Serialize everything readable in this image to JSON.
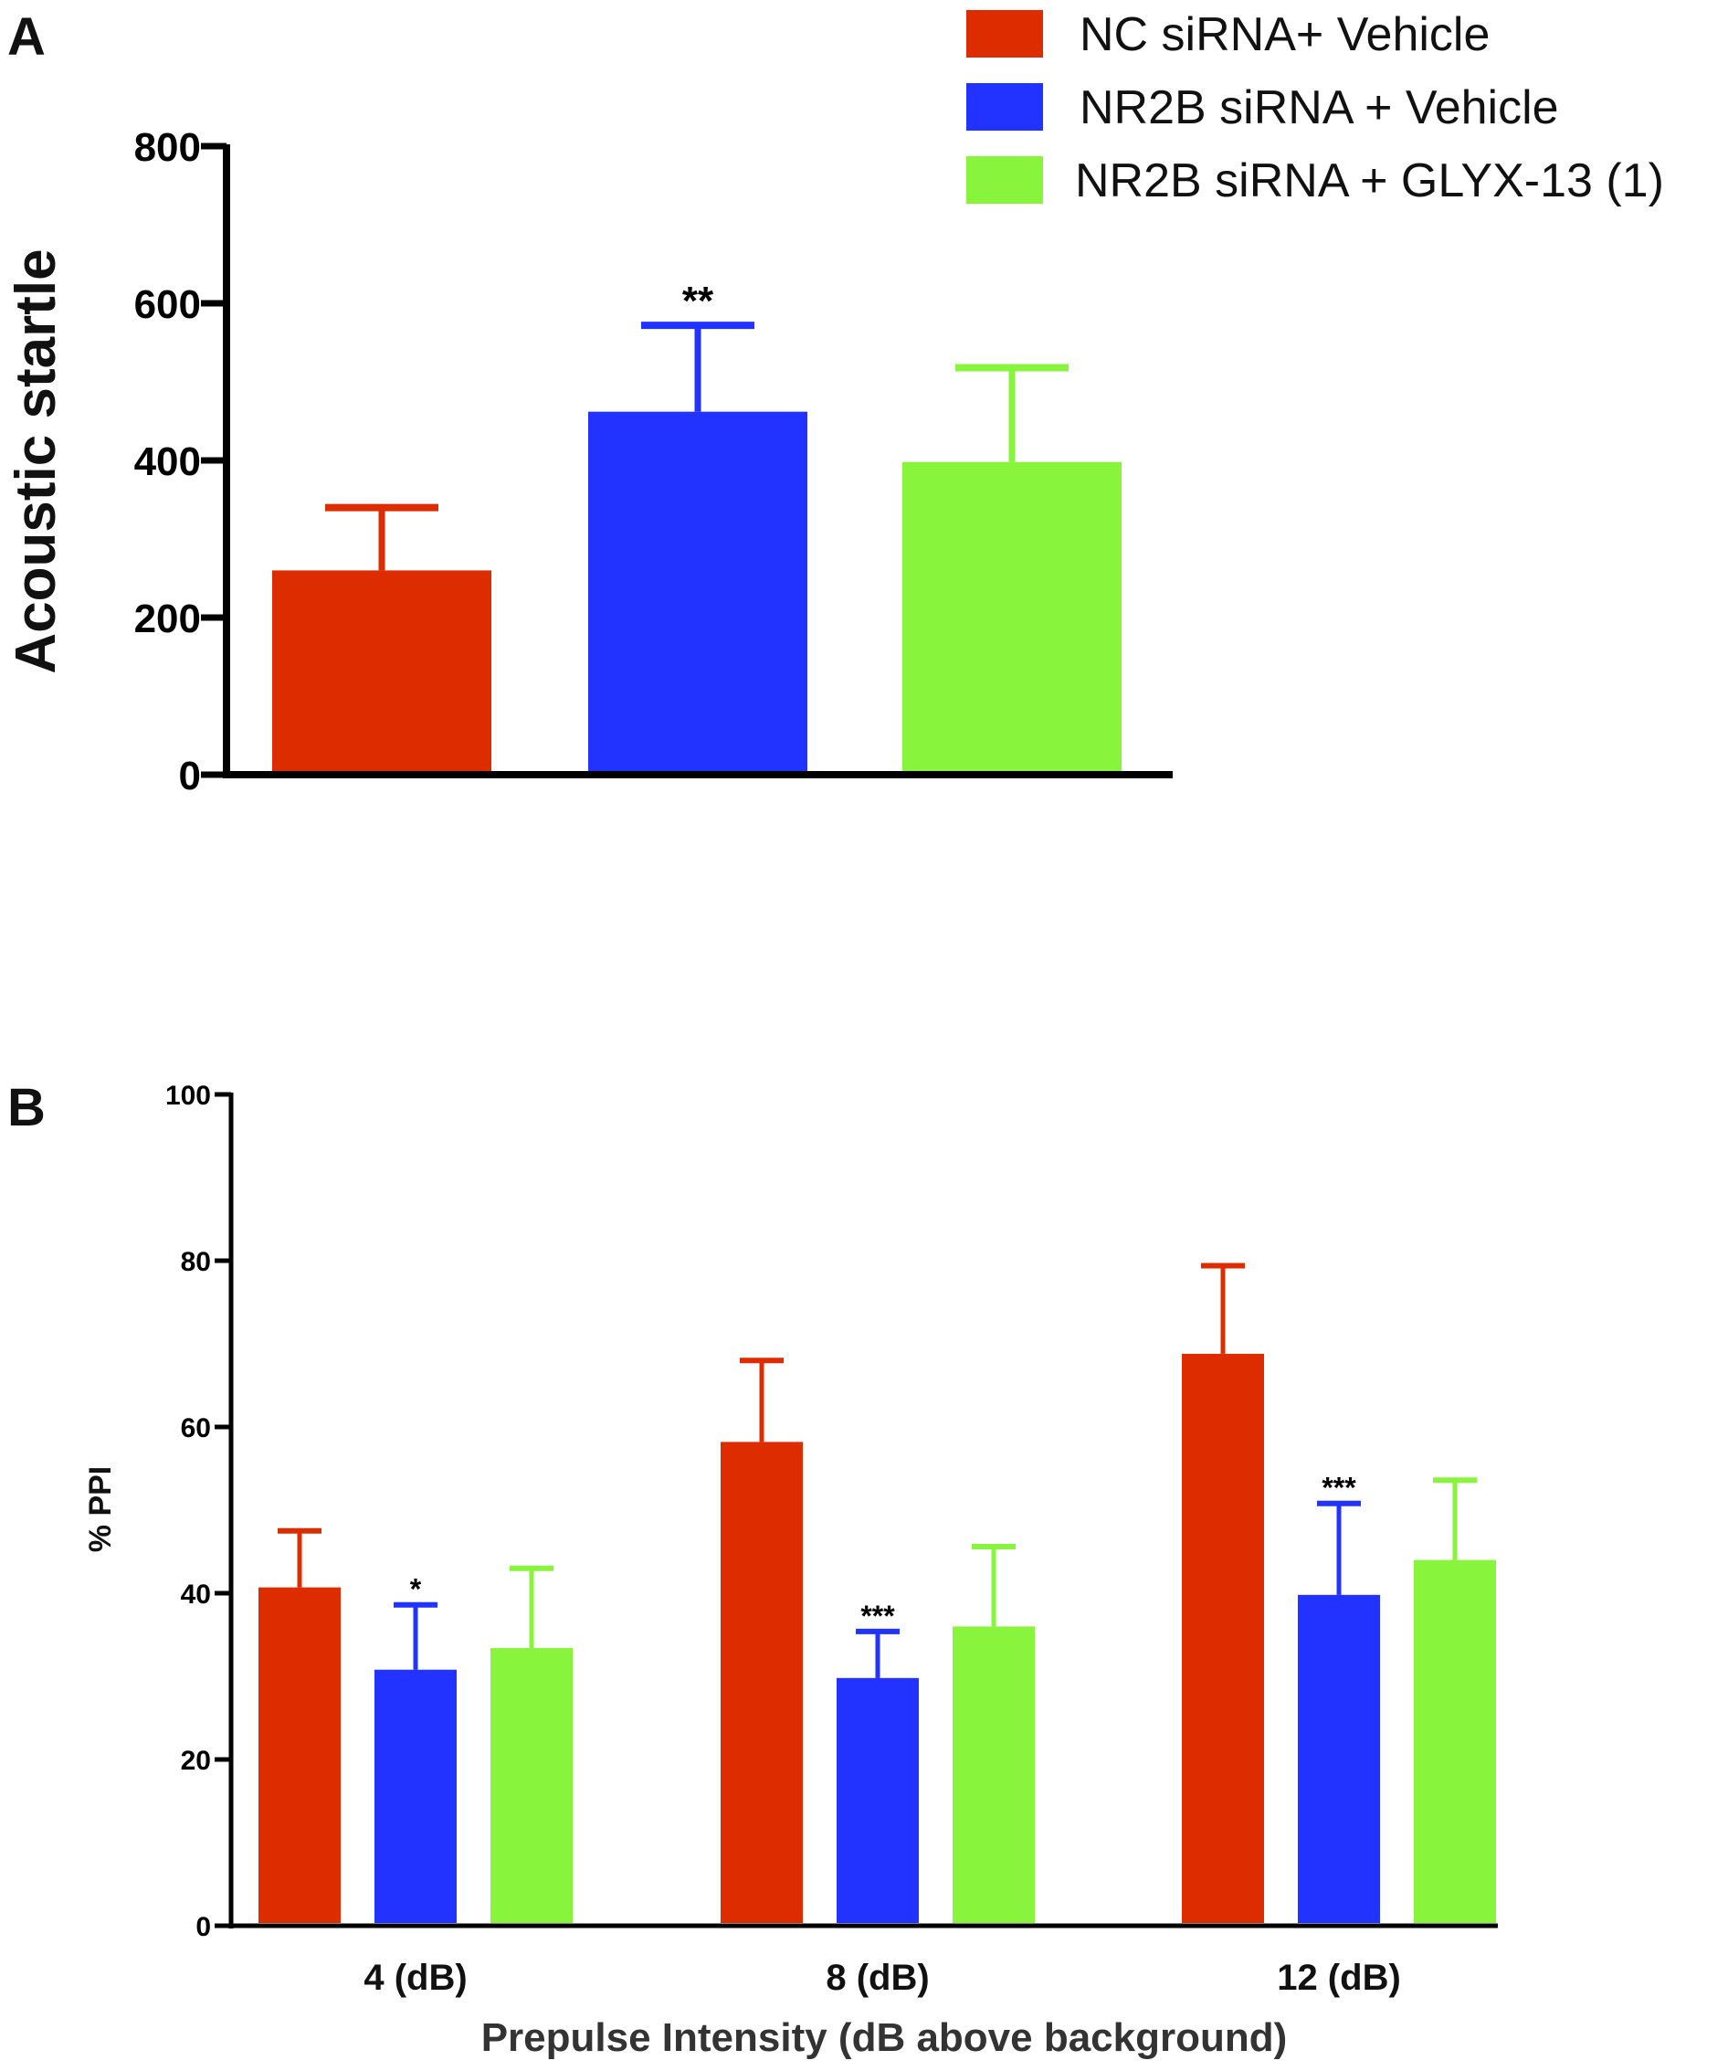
{
  "colors": {
    "nc_vehicle": "#dd2c00",
    "nr2b_vehicle": "#2233ff",
    "nr2b_glyx": "#88f53c",
    "axis": "#000000"
  },
  "legend": {
    "entries": [
      {
        "label": "NC siRNA+ Vehicle",
        "color_key": "nc_vehicle"
      },
      {
        "label": "NR2B siRNA + Vehicle",
        "color_key": "nr2b_vehicle"
      },
      {
        "label": "NR2B siRNA + GLYX-13 (1)",
        "color_key": "nr2b_glyx"
      }
    ]
  },
  "chart_data": [
    {
      "panel": "A",
      "type": "bar",
      "title": "",
      "xlabel": "",
      "ylabel": "Acoustic startle",
      "ylim": [
        0,
        800
      ],
      "yticks": [
        "0",
        "200",
        "400",
        "600",
        "800"
      ],
      "categories": [
        "NC siRNA+ Vehicle",
        "NR2B siRNA + Vehicle",
        "NR2B siRNA + GLYX-13 (1)"
      ],
      "values": [
        260,
        462,
        398
      ],
      "errors": [
        80,
        110,
        120
      ],
      "significance": [
        "",
        "**",
        ""
      ],
      "color_keys": [
        "nc_vehicle",
        "nr2b_vehicle",
        "nr2b_glyx"
      ]
    },
    {
      "panel": "B",
      "type": "bar",
      "title": "",
      "xlabel": "Prepulse Intensity (dB above background)",
      "ylabel": "% PPI",
      "ylim": [
        0,
        100
      ],
      "yticks": [
        "0",
        "20",
        "40",
        "60",
        "80",
        "100"
      ],
      "categories": [
        "4 (dB)",
        "8 (dB)",
        "12 (dB)"
      ],
      "series": [
        {
          "name": "NC siRNA+ Vehicle",
          "color_key": "nc_vehicle",
          "values": [
            40.7,
            58.2,
            68.8
          ],
          "errors": [
            6.8,
            9.8,
            10.6
          ],
          "significance": [
            "",
            "",
            ""
          ]
        },
        {
          "name": "NR2B siRNA + Vehicle",
          "color_key": "nr2b_vehicle",
          "values": [
            30.8,
            29.8,
            39.8
          ],
          "errors": [
            7.8,
            5.6,
            11.0
          ],
          "significance": [
            "*",
            "***",
            "***"
          ]
        },
        {
          "name": "NR2B siRNA + GLYX-13 (1)",
          "color_key": "nr2b_glyx",
          "values": [
            33.4,
            36.0,
            44.0
          ],
          "errors": [
            9.6,
            9.6,
            9.6
          ],
          "significance": [
            "",
            "",
            ""
          ]
        }
      ]
    }
  ]
}
